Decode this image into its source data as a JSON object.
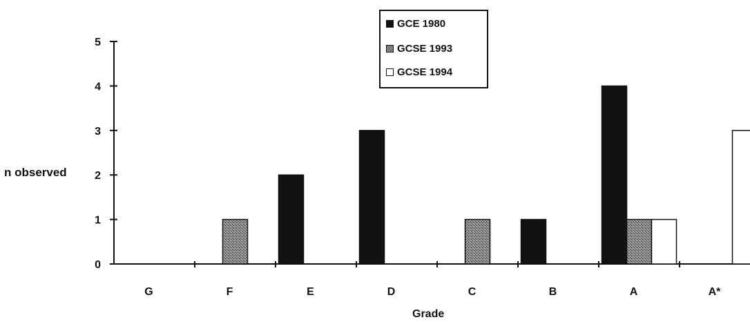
{
  "chart_data": {
    "type": "bar",
    "title": "",
    "xlabel": "Grade",
    "ylabel": "n observed",
    "categories": [
      "G",
      "F",
      "E",
      "D",
      "C",
      "B",
      "A",
      "A*"
    ],
    "series": [
      {
        "name": "GCE 1980",
        "values": [
          0,
          0,
          2,
          3,
          0,
          1,
          4,
          0
        ],
        "color": "#111111",
        "pattern": "solid"
      },
      {
        "name": "GCSE 1993",
        "values": [
          0,
          1,
          0,
          0,
          1,
          0,
          1,
          0
        ],
        "color": "#7a7a7a",
        "pattern": "stipple"
      },
      {
        "name": "GCSE 1994",
        "values": [
          0,
          0,
          0,
          0,
          0,
          0,
          1,
          3
        ],
        "color": "#ffffff",
        "pattern": "hollow"
      }
    ],
    "ylim": [
      0,
      5
    ],
    "yticks": [
      0,
      1,
      2,
      3,
      4,
      5
    ],
    "grid": false,
    "legend_position": "top-center"
  }
}
